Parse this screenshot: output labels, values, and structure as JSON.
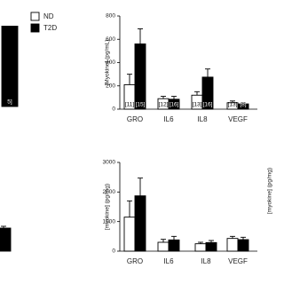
{
  "chart_data": [
    {
      "type": "bar",
      "categories": [
        null
      ],
      "ylim": [
        0,
        800
      ],
      "legend": true,
      "series": [
        {
          "name": "ND",
          "color": "#ffffff",
          "values": [
            null
          ]
        },
        {
          "name": "T2D",
          "color": "#000000",
          "values": [
            710
          ],
          "value_labels": [
            "5]"
          ]
        }
      ]
    },
    {
      "type": "bar",
      "ylabel": "[Myokine] (pg/mL)",
      "categories": [
        "GRO",
        "IL6",
        "IL8",
        "VEGF"
      ],
      "ylim": [
        0,
        800
      ],
      "yticks": [
        0,
        200,
        400,
        600,
        800
      ],
      "series": [
        {
          "color": "#ffffff",
          "values": [
            210,
            90,
            120,
            55
          ],
          "errors": [
            90,
            20,
            30,
            15
          ],
          "value_labels": [
            "[11]",
            "[12]",
            "[13]",
            "[13]"
          ]
        },
        {
          "color": "#000000",
          "values": [
            560,
            85,
            275,
            45
          ],
          "errors": [
            130,
            25,
            70,
            10
          ],
          "value_labels": [
            "[15]",
            "[16]",
            "[16]",
            "[8]"
          ]
        }
      ]
    },
    {
      "type": "bar",
      "categories": [
        null
      ],
      "ylim": [
        0,
        3000
      ],
      "series": [
        {
          "color": "#000000",
          "values": [
            780
          ],
          "errors": [
            60
          ]
        }
      ]
    },
    {
      "type": "bar",
      "ylabel": "[myokine] (pg/mg)",
      "categories": [
        "GRO",
        "IL6",
        "IL8",
        "VEGF"
      ],
      "ylim": [
        0,
        3000
      ],
      "yticks": [
        0,
        1000,
        2000,
        3000
      ],
      "series": [
        {
          "color": "#ffffff",
          "values": [
            1150,
            300,
            250,
            430
          ],
          "errors": [
            550,
            100,
            50,
            70
          ]
        },
        {
          "color": "#000000",
          "values": [
            1870,
            380,
            290,
            390
          ],
          "errors": [
            600,
            120,
            70,
            80
          ]
        }
      ]
    },
    {
      "type": "bar",
      "ylabel": "[myokine] (pg/mg)"
    }
  ]
}
